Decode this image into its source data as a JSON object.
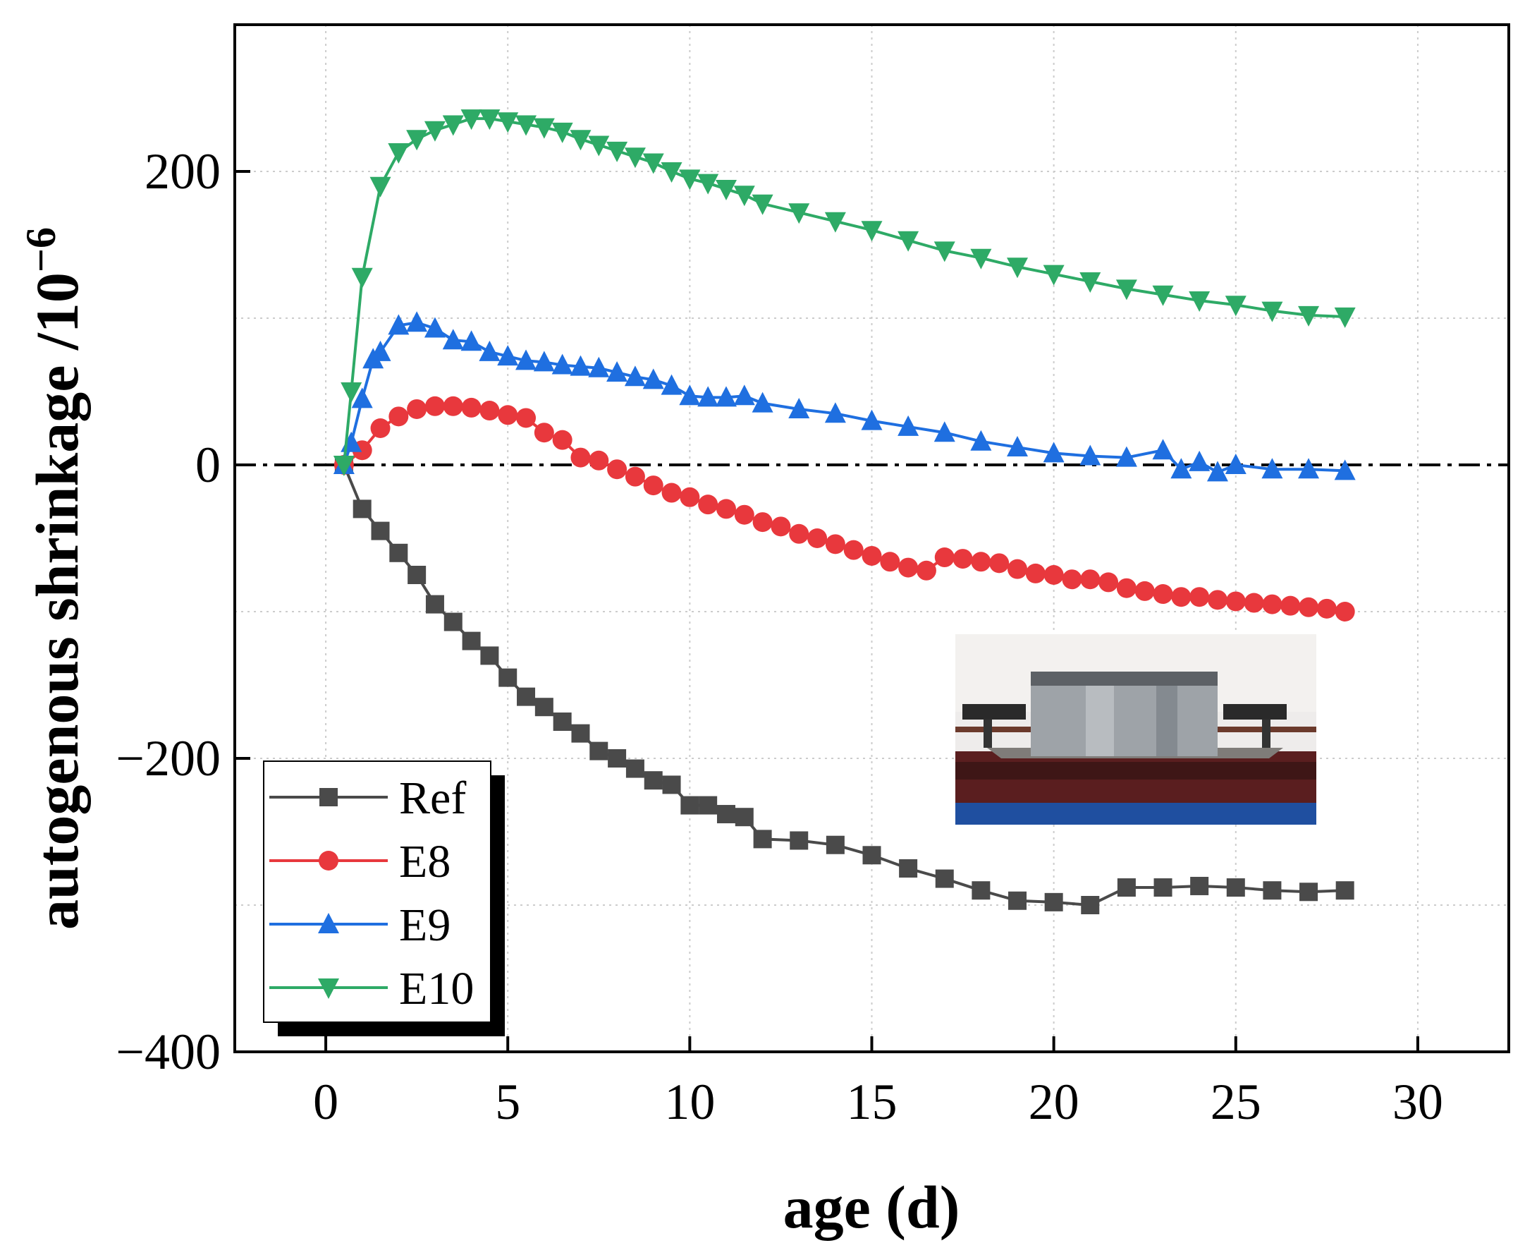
{
  "chart_data": {
    "type": "line",
    "title": "",
    "xlabel": "age (d)",
    "ylabel": "autogenous shrinkage /10",
    "ylabel_exponent": "−6",
    "xlim": [
      -2.5,
      32.5
    ],
    "ylim": [
      -400,
      300
    ],
    "xticks": [
      0,
      5,
      10,
      15,
      20,
      25,
      30
    ],
    "xtick_labels": [
      "0",
      "5",
      "10",
      "15",
      "20",
      "25",
      "30"
    ],
    "yticks": [
      -400,
      -200,
      0,
      200
    ],
    "ytick_labels": [
      "−400",
      "−200",
      "0",
      "200"
    ],
    "grid": true,
    "reference_line": {
      "y": 0,
      "style": "dash-dot",
      "color": "#000000"
    },
    "legend_position": "bottom-left",
    "series": [
      {
        "name": "Ref",
        "color": "#4a4a4a",
        "marker": "square",
        "x": [
          0.5,
          1,
          1.5,
          2,
          2.5,
          3,
          3.5,
          4,
          4.5,
          5,
          5.5,
          6,
          6.5,
          7,
          7.5,
          8,
          8.5,
          9,
          9.5,
          10,
          10.5,
          11,
          11.5,
          12,
          13,
          14,
          15,
          16,
          17,
          18,
          19,
          20,
          21,
          22,
          23,
          24,
          25,
          26,
          27,
          28
        ],
        "y": [
          0,
          -30,
          -45,
          -60,
          -75,
          -95,
          -107,
          -120,
          -130,
          -145,
          -158,
          -165,
          -175,
          -183,
          -195,
          -200,
          -207,
          -215,
          -218,
          -232,
          -232,
          -238,
          -240,
          -255,
          -256,
          -259,
          -266,
          -275,
          -282,
          -290,
          -297,
          -298,
          -300,
          -288,
          -288,
          -287,
          -288,
          -290,
          -291,
          -290
        ]
      },
      {
        "name": "E8",
        "color": "#e8383d",
        "marker": "circle",
        "x": [
          0.5,
          1,
          1.5,
          2,
          2.5,
          3,
          3.5,
          4,
          4.5,
          5,
          5.5,
          6,
          6.5,
          7,
          7.5,
          8,
          8.5,
          9,
          9.5,
          10,
          10.5,
          11,
          11.5,
          12,
          12.5,
          13,
          13.5,
          14,
          14.5,
          15,
          15.5,
          16,
          16.5,
          17,
          17.5,
          18,
          18.5,
          19,
          19.5,
          20,
          20.5,
          21,
          21.5,
          22,
          22.5,
          23,
          23.5,
          24,
          24.5,
          25,
          25.5,
          26,
          26.5,
          27,
          27.5,
          28
        ],
        "y": [
          0,
          10,
          25,
          33,
          38,
          40,
          40,
          39,
          37,
          34,
          32,
          22,
          17,
          5,
          3,
          -3,
          -8,
          -14,
          -19,
          -22,
          -27,
          -30,
          -34,
          -39,
          -42,
          -47,
          -50,
          -54,
          -58,
          -62,
          -66,
          -70,
          -72,
          -63,
          -64,
          -66,
          -67,
          -71,
          -74,
          -75,
          -78,
          -78,
          -80,
          -84,
          -86,
          -88,
          -90,
          -90,
          -92,
          -93,
          -94,
          -95,
          -96,
          -97,
          -98,
          -100
        ]
      },
      {
        "name": "E9",
        "color": "#1f6fe0",
        "marker": "triangle-up",
        "x": [
          0.5,
          0.7,
          1,
          1.3,
          1.5,
          2,
          2.5,
          3,
          3.5,
          4,
          4.5,
          5,
          5.5,
          6,
          6.5,
          7,
          7.5,
          8,
          8.5,
          9,
          9.5,
          10,
          10.5,
          11,
          11.5,
          12,
          13,
          14,
          15,
          16,
          17,
          18,
          19,
          20,
          21,
          22,
          23,
          23.5,
          24,
          24.5,
          25,
          26,
          27,
          28
        ],
        "y": [
          0,
          15,
          45,
          72,
          77,
          95,
          97,
          93,
          85,
          84,
          77,
          74,
          71,
          70,
          68,
          67,
          66,
          63,
          60,
          58,
          54,
          47,
          46,
          46,
          47,
          42,
          38,
          35,
          30,
          26,
          22,
          16,
          12,
          8,
          6,
          5,
          10,
          -3,
          2,
          -5,
          0,
          -3,
          -3,
          -4
        ]
      },
      {
        "name": "E10",
        "color": "#2eaa66",
        "marker": "triangle-down",
        "x": [
          0.5,
          0.7,
          1,
          1.5,
          2,
          2.5,
          3,
          3.5,
          4,
          4.5,
          5,
          5.5,
          6,
          6.5,
          7,
          7.5,
          8,
          8.5,
          9,
          9.5,
          10,
          10.5,
          11,
          11.5,
          12,
          13,
          14,
          15,
          16,
          17,
          18,
          19,
          20,
          21,
          22,
          23,
          24,
          25,
          26,
          27,
          28
        ],
        "y": [
          0,
          50,
          128,
          190,
          213,
          222,
          228,
          232,
          236,
          236,
          234,
          232,
          230,
          227,
          222,
          218,
          214,
          210,
          206,
          200,
          195,
          192,
          188,
          184,
          178,
          172,
          166,
          160,
          153,
          146,
          141,
          135,
          130,
          125,
          120,
          116,
          112,
          109,
          105,
          102,
          101
        ]
      }
    ]
  }
}
